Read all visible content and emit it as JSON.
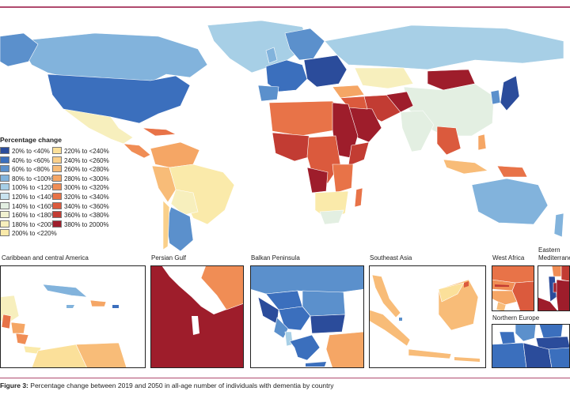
{
  "legend": {
    "title": "Percentage change",
    "items": [
      {
        "label": "20% to <40%",
        "color": "#2b4c9b"
      },
      {
        "label": "40% to <60%",
        "color": "#3b6fbd"
      },
      {
        "label": "60% to <80%",
        "color": "#5b90cc"
      },
      {
        "label": "80% to <100%",
        "color": "#82b3dc"
      },
      {
        "label": "100% to <120%",
        "color": "#a7cfe6"
      },
      {
        "label": "120% to <140%",
        "color": "#c9e3ef"
      },
      {
        "label": "140% to <160%",
        "color": "#e3efe2"
      },
      {
        "label": "160% to <180%",
        "color": "#f1f1d0"
      },
      {
        "label": "180% to <200%",
        "color": "#f7efbd"
      },
      {
        "label": "200% to <220%",
        "color": "#faeaaa"
      },
      {
        "label": "220% to <240%",
        "color": "#fbe09a"
      },
      {
        "label": "240% to <260%",
        "color": "#fad08a"
      },
      {
        "label": "260% to <280%",
        "color": "#f8bc78"
      },
      {
        "label": "280% to <300%",
        "color": "#f5a665"
      },
      {
        "label": "300% to <320%",
        "color": "#f08d55"
      },
      {
        "label": "320% to <340%",
        "color": "#e87348"
      },
      {
        "label": "340% to <360%",
        "color": "#db5a3d"
      },
      {
        "label": "360% to <380%",
        "color": "#c23c33"
      },
      {
        "label": "380% to 2000%",
        "color": "#9e1d2b"
      }
    ]
  },
  "insets": {
    "caribbean": "Caribbean and central America",
    "persian_gulf": "Persian Gulf",
    "balkan": "Balkan Peninsula",
    "southeast_asia": "Southeast Asia",
    "west_africa": "West Africa",
    "eastern_med": "Eastern Mediterranean",
    "northern_europe": "Northern Europe"
  },
  "caption": {
    "label": "Figure 3:",
    "text": "Percentage change between 2019 and 2050 in all-age number of individuals with dementia by country"
  }
}
